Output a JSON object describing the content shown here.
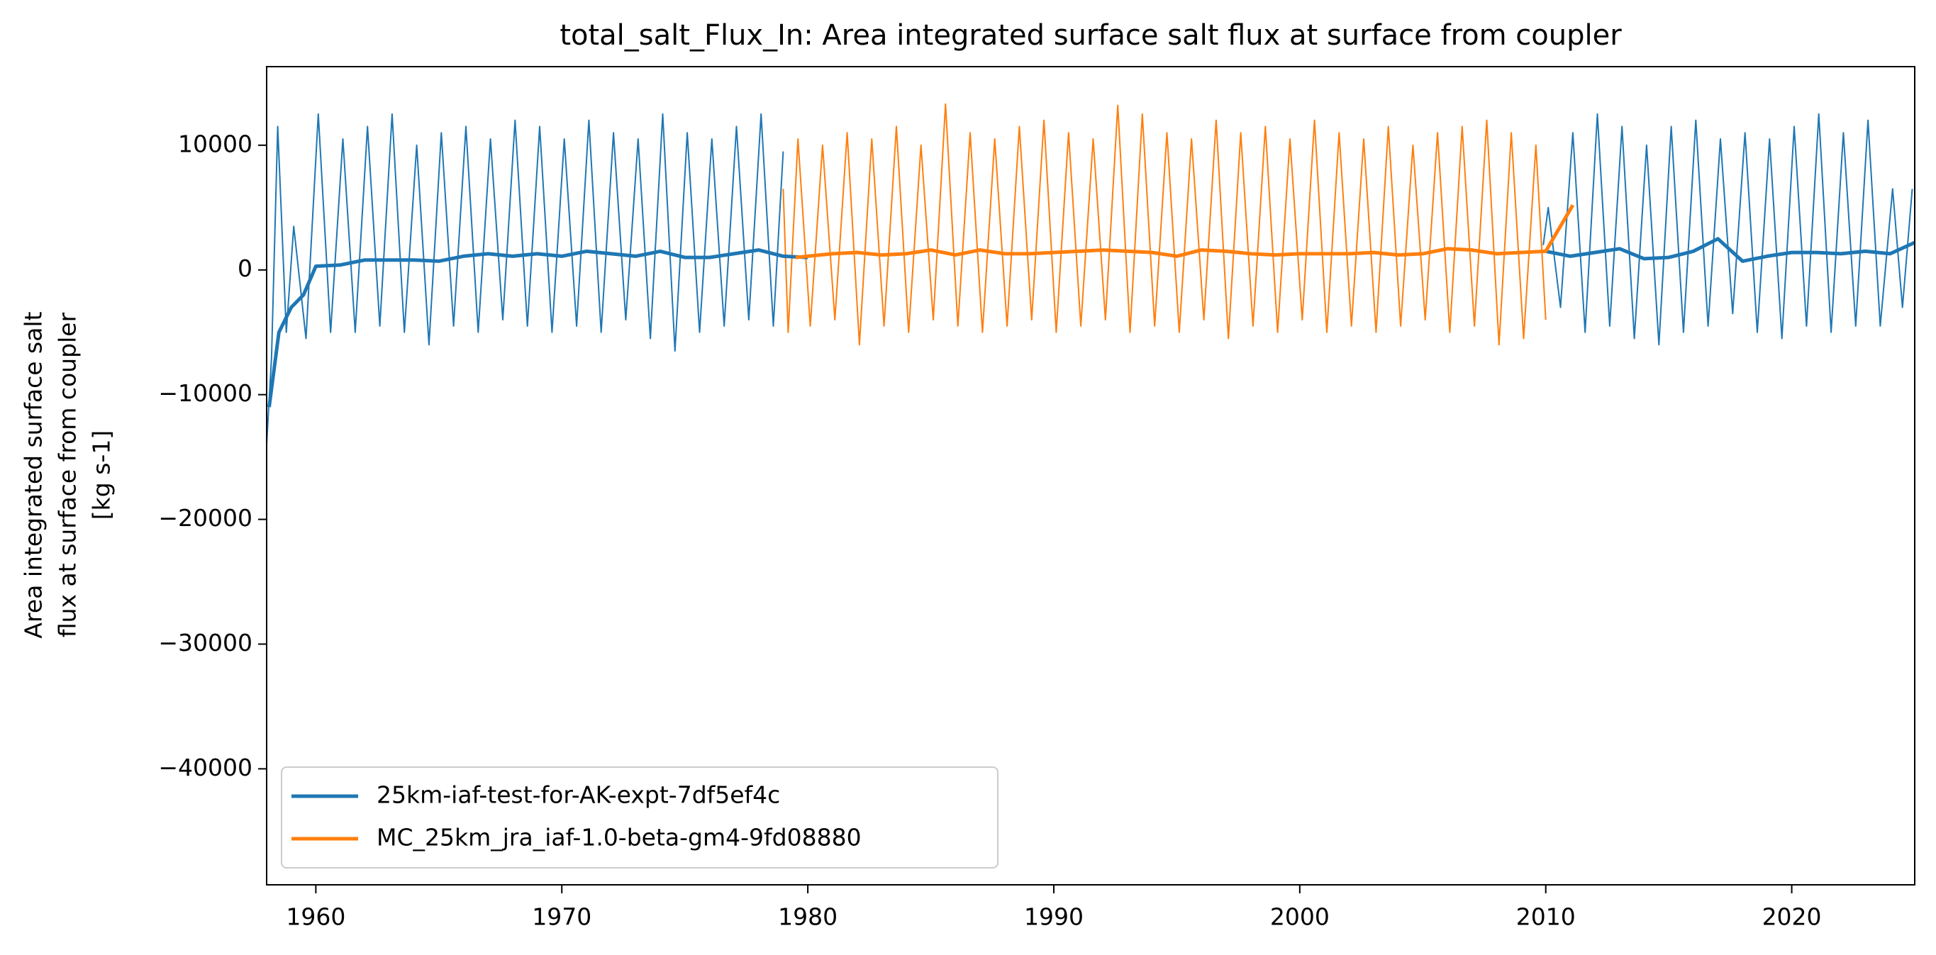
{
  "chart_data": {
    "type": "line",
    "title": "total_salt_Flux_In: Area integrated surface salt flux at surface from coupler",
    "ylabel": [
      "Area integrated surface salt",
      "flux at surface from coupler",
      "[kg s-1]"
    ],
    "xlim": [
      1958,
      2025
    ],
    "xticks": [
      1960,
      1970,
      1980,
      1990,
      2000,
      2010,
      2020
    ],
    "ylim": [
      -49300,
      16300
    ],
    "yticks": [
      {
        "value": -40000,
        "label": "−40000"
      },
      {
        "value": -30000,
        "label": "−30000"
      },
      {
        "value": -20000,
        "label": "−20000"
      },
      {
        "value": -10000,
        "label": "−10000"
      },
      0,
      10000
    ],
    "legend": "lower left",
    "series": [
      {
        "name": "25km-iaf-test-for-AK-expt-7df5ef4c",
        "color": "#1f77b4",
        "width": "thick",
        "x": [
          1958.1,
          1958.5,
          1959,
          1959.5,
          1960,
          1961,
          1962,
          1963,
          1964,
          1965,
          1966,
          1967,
          1968,
          1969,
          1970,
          1971,
          1972,
          1973,
          1974,
          1975,
          1976,
          1977,
          1978,
          1979,
          1980,
          1995,
          2010,
          2011,
          2012,
          2013,
          2014,
          2015,
          2016,
          2017,
          2018,
          2019,
          2020,
          2021,
          2022,
          2023,
          2024,
          2025
        ],
        "values": [
          -11000,
          -5000,
          -3000,
          -2000,
          300,
          400,
          800,
          800,
          800,
          700,
          1100,
          1300,
          1100,
          1300,
          1100,
          1500,
          1300,
          1100,
          1500,
          1000,
          1000,
          1300,
          1600,
          1100,
          1000,
          null,
          1500,
          1100,
          1400,
          1700,
          900,
          1000,
          1500,
          2500,
          700,
          1100,
          1400,
          1400,
          1300,
          1500,
          1300,
          2200
        ]
      },
      {
        "name": "MC_25km_jra_iaf-1.0-beta-gm4-9fd08880",
        "color": "#ff7f0e",
        "width": "thick",
        "x": [
          1979.5,
          1980,
          1981,
          1982,
          1983,
          1984,
          1985,
          1986,
          1987,
          1988,
          1989,
          1990,
          1991,
          1992,
          1993,
          1994,
          1995,
          1996,
          1997,
          1998,
          1999,
          2000,
          2001,
          2002,
          2003,
          2004,
          2005,
          2006,
          2007,
          2008,
          2009,
          2010,
          2011.1
        ],
        "values": [
          1000,
          1100,
          1300,
          1400,
          1200,
          1300,
          1600,
          1200,
          1600,
          1300,
          1300,
          1400,
          1500,
          1600,
          1500,
          1400,
          1100,
          1600,
          1500,
          1300,
          1200,
          1300,
          1300,
          1300,
          1400,
          1200,
          1300,
          1700,
          1600,
          1300,
          1400,
          1500,
          5200
        ]
      },
      {
        "color": "#1f77b4",
        "width": "thin",
        "x": [
          1958.0,
          1958.2,
          1958.45,
          1958.8,
          1959.1,
          1959.6,
          1960.1,
          1960.6,
          1961.1,
          1961.6,
          1962.1,
          1962.6,
          1963.1,
          1963.6,
          1964.1,
          1964.6,
          1965.1,
          1965.6,
          1966.1,
          1966.6,
          1967.1,
          1967.6,
          1968.1,
          1968.6,
          1969.1,
          1969.6,
          1970.1,
          1970.6,
          1971.1,
          1971.6,
          1972.1,
          1972.6,
          1973.1,
          1973.6,
          1974.1,
          1974.6,
          1975.1,
          1975.6,
          1976.1,
          1976.6,
          1977.1,
          1977.6,
          1978.1,
          1978.6,
          1979.0,
          1995,
          2009.9,
          2010.1,
          2010.6,
          2011.1,
          2011.6,
          2012.1,
          2012.6,
          2013.1,
          2013.6,
          2014.1,
          2014.6,
          2015.1,
          2015.6,
          2016.1,
          2016.6,
          2017.1,
          2017.6,
          2018.1,
          2018.6,
          2019.1,
          2019.6,
          2020.1,
          2020.6,
          2021.1,
          2021.6,
          2022.1,
          2022.6,
          2023.1,
          2023.6,
          2024.1,
          2024.5,
          2024.9
        ],
        "values": [
          -14000,
          -7000,
          11500,
          -5000,
          3500,
          -5500,
          12500,
          -5000,
          10500,
          -5000,
          11500,
          -4500,
          12500,
          -5000,
          10000,
          -6000,
          11000,
          -4500,
          11500,
          -5000,
          10500,
          -4000,
          12000,
          -4500,
          11500,
          -5000,
          10500,
          -4500,
          12000,
          -5000,
          11000,
          -4000,
          10500,
          -5500,
          12500,
          -6500,
          11000,
          -5000,
          10500,
          -4500,
          11500,
          -4000,
          12500,
          -4500,
          9500,
          null,
          2000,
          5000,
          -3000,
          11000,
          -5000,
          12500,
          -4500,
          11500,
          -5500,
          10000,
          -6000,
          11500,
          -5000,
          12000,
          -4500,
          10500,
          -3500,
          11000,
          -5000,
          10500,
          -5500,
          11500,
          -4500,
          12500,
          -5000,
          11000,
          -4500,
          12000,
          -4500,
          6500,
          -3000,
          6500
        ]
      },
      {
        "color": "#ff7f0e",
        "width": "thin",
        "x": [
          1979.0,
          1979.2,
          1979.6,
          1980.1,
          1980.6,
          1981.1,
          1981.6,
          1982.1,
          1982.6,
          1983.1,
          1983.6,
          1984.1,
          1984.6,
          1985.1,
          1985.6,
          1986.1,
          1986.6,
          1987.1,
          1987.6,
          1988.1,
          1988.6,
          1989.1,
          1989.6,
          1990.1,
          1990.6,
          1991.1,
          1991.6,
          1992.1,
          1992.6,
          1993.1,
          1993.6,
          1994.1,
          1994.6,
          1995.1,
          1995.6,
          1996.1,
          1996.6,
          1997.1,
          1997.6,
          1998.1,
          1998.6,
          1999.1,
          1999.6,
          2000.1,
          2000.6,
          2001.1,
          2001.6,
          2002.1,
          2002.6,
          2003.1,
          2003.6,
          2004.1,
          2004.6,
          2005.1,
          2005.6,
          2006.1,
          2006.6,
          2007.1,
          2007.6,
          2008.1,
          2008.6,
          2009.1,
          2009.6,
          2010.0
        ],
        "values": [
          6500,
          -5000,
          10500,
          -4500,
          10000,
          -4000,
          11000,
          -6000,
          10500,
          -4500,
          11500,
          -5000,
          10000,
          -4000,
          13300,
          -4500,
          11000,
          -5000,
          10500,
          -4500,
          11500,
          -4000,
          12000,
          -5000,
          11000,
          -4500,
          10500,
          -4000,
          13200,
          -5000,
          12500,
          -4500,
          11000,
          -5000,
          10500,
          -4000,
          12000,
          -5500,
          11000,
          -4500,
          11500,
          -5000,
          10500,
          -4000,
          12000,
          -5000,
          11000,
          -4500,
          10500,
          -5000,
          11500,
          -4500,
          10000,
          -4000,
          11000,
          -5000,
          11500,
          -4500,
          12000,
          -6000,
          11000,
          -5500,
          10000,
          -4000
        ]
      }
    ]
  }
}
